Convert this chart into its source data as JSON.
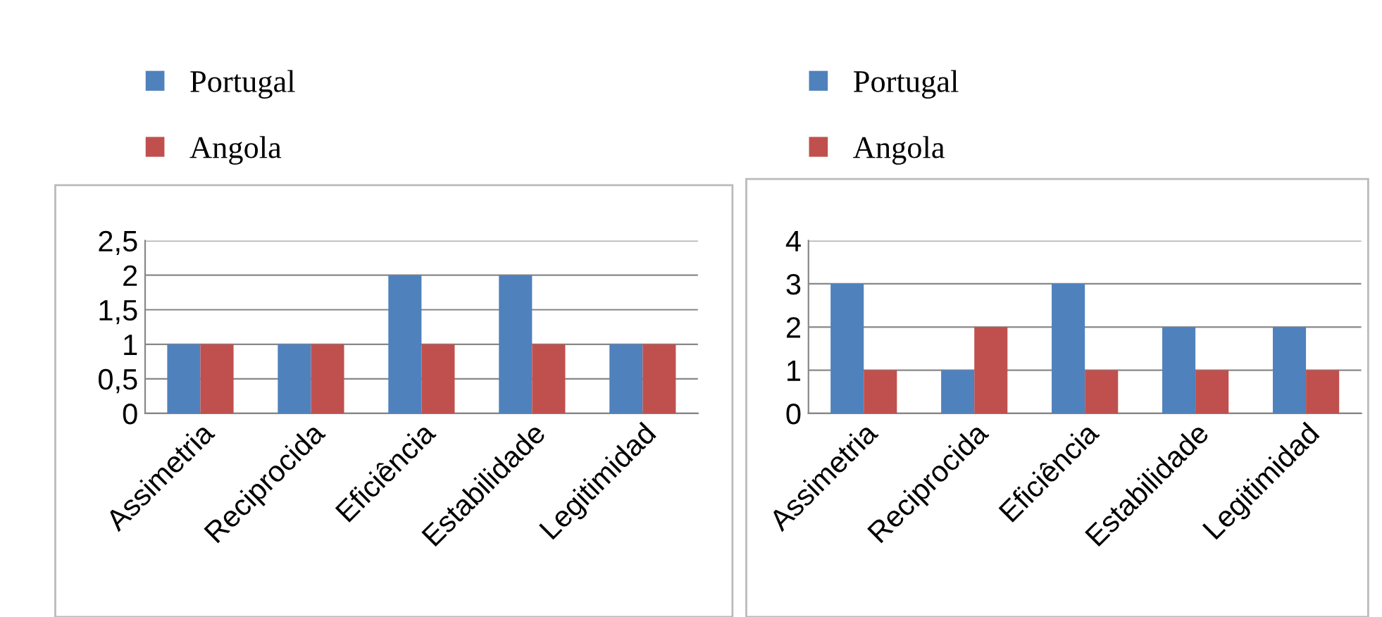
{
  "chart_data": [
    {
      "type": "bar",
      "categories": [
        "Assimetria",
        "Reciprocida",
        "Eficiência",
        "Estabilidade",
        "Legitimidad"
      ],
      "series": [
        {
          "name": "Portugal",
          "color": "#4f81bd",
          "values": [
            1,
            1,
            2,
            2,
            1
          ]
        },
        {
          "name": "Angola",
          "color": "#c0504d",
          "values": [
            1,
            1,
            1,
            1,
            1
          ]
        }
      ],
      "ylim": [
        0,
        2.5
      ],
      "yticks": [
        0,
        {
          "value": 0.5,
          "label": "0,5"
        },
        1,
        {
          "value": 1.5,
          "label": "1,5"
        },
        2,
        {
          "value": 2.5,
          "label": "2,5"
        }
      ],
      "grid": "y",
      "legend": "top left"
    },
    {
      "type": "bar",
      "categories": [
        "Assimetria",
        "Reciprocida",
        "Eficiência",
        "Estabilidade",
        "Legitimidad"
      ],
      "series": [
        {
          "name": "Portugal",
          "color": "#4f81bd",
          "values": [
            3,
            1,
            3,
            2,
            2
          ]
        },
        {
          "name": "Angola",
          "color": "#c0504d",
          "values": [
            1,
            2,
            1,
            1,
            1
          ]
        }
      ],
      "ylim": [
        0,
        4
      ],
      "yticks": [
        0,
        1,
        2,
        3,
        4
      ],
      "grid": "y",
      "legend": "top left"
    }
  ]
}
